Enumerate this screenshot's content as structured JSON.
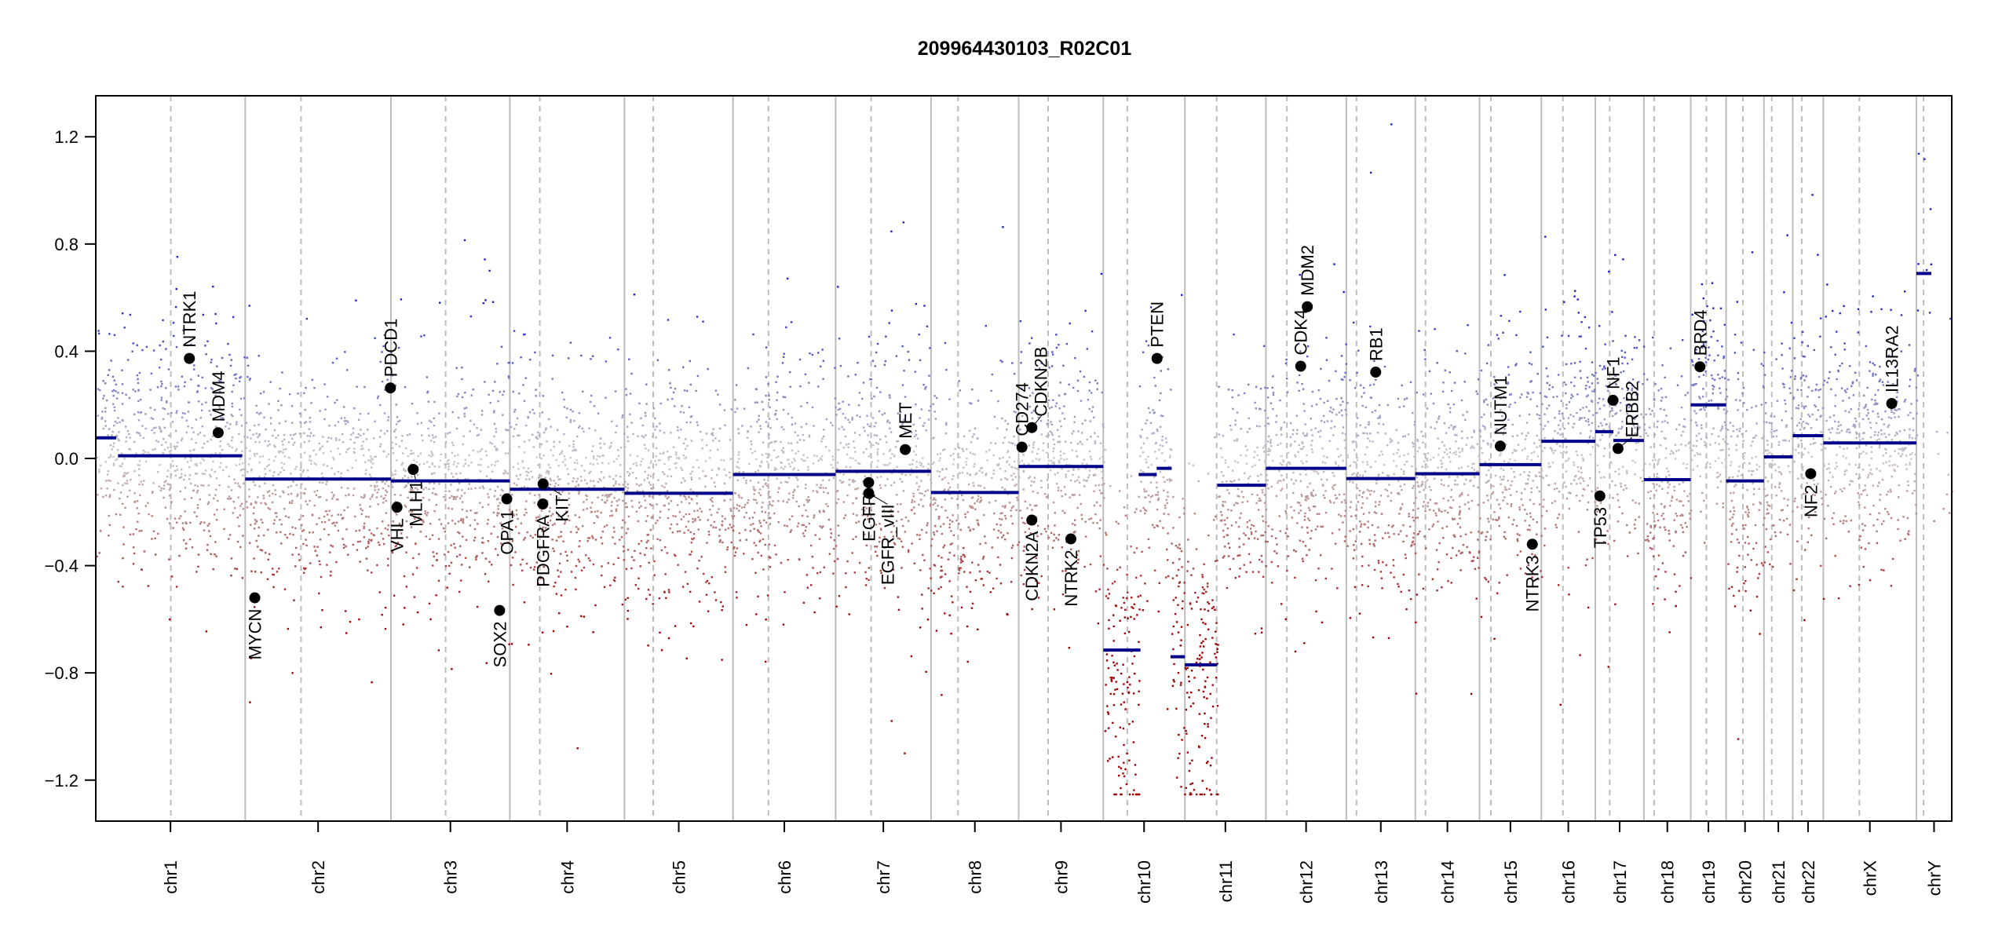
{
  "chart_data": {
    "type": "scatter",
    "title": "209964430103_R02C01",
    "xlabel": "",
    "ylabel": "",
    "ylim": [
      -1.353,
      1.353
    ],
    "yticks": [
      -1.2,
      -0.8,
      -0.4,
      0.0,
      0.4,
      0.8,
      1.2
    ],
    "ytick_labels": [
      "−1.2",
      "−0.8",
      "−0.4",
      "0.0",
      "0.4",
      "0.8",
      "1.2"
    ],
    "probe_clip": 1.25,
    "colors": {
      "gain": "#00008b",
      "loss": "#8b0000",
      "neutral": "#c8c8c8",
      "segment": "#00008b",
      "gene": "#000000",
      "chrom_line": "#bdbdbd",
      "centromere_line": "#bdbdbd"
    },
    "chromosomes": [
      {
        "name": "chr1",
        "length": 249,
        "centromere": 125
      },
      {
        "name": "chr2",
        "length": 243,
        "centromere": 93
      },
      {
        "name": "chr3",
        "length": 198,
        "centromere": 91
      },
      {
        "name": "chr4",
        "length": 191,
        "centromere": 50
      },
      {
        "name": "chr5",
        "length": 181,
        "centromere": 48
      },
      {
        "name": "chr6",
        "length": 171,
        "centromere": 59
      },
      {
        "name": "chr7",
        "length": 159,
        "centromere": 59
      },
      {
        "name": "chr8",
        "length": 146,
        "centromere": 45
      },
      {
        "name": "chr9",
        "length": 141,
        "centromere": 49
      },
      {
        "name": "chr10",
        "length": 136,
        "centromere": 40
      },
      {
        "name": "chr11",
        "length": 135,
        "centromere": 53
      },
      {
        "name": "chr12",
        "length": 134,
        "centromere": 35
      },
      {
        "name": "chr13",
        "length": 115,
        "centromere": 17
      },
      {
        "name": "chr14",
        "length": 107,
        "centromere": 17
      },
      {
        "name": "chr15",
        "length": 103,
        "centromere": 19
      },
      {
        "name": "chr16",
        "length": 90,
        "centromere": 36
      },
      {
        "name": "chr17",
        "length": 81,
        "centromere": 24
      },
      {
        "name": "chr18",
        "length": 78,
        "centromere": 17
      },
      {
        "name": "chr19",
        "length": 59,
        "centromere": 26
      },
      {
        "name": "chr20",
        "length": 63,
        "centromere": 28
      },
      {
        "name": "chr21",
        "length": 48,
        "centromere": 13
      },
      {
        "name": "chr22",
        "length": 51,
        "centromere": 15
      },
      {
        "name": "chrX",
        "length": 155,
        "centromere": 60
      },
      {
        "name": "chrY",
        "length": 59,
        "centromere": 12
      }
    ],
    "segments": [
      {
        "chr": "chr1",
        "start": 0,
        "end": 34,
        "value": 0.077
      },
      {
        "chr": "chr1",
        "start": 37,
        "end": 244,
        "value": 0.01
      },
      {
        "chr": "chr2",
        "start": 0,
        "end": 243,
        "value": -0.077
      },
      {
        "chr": "chr3",
        "start": 0,
        "end": 198,
        "value": -0.084
      },
      {
        "chr": "chr4",
        "start": 0,
        "end": 191,
        "value": -0.115
      },
      {
        "chr": "chr5",
        "start": 0,
        "end": 181,
        "value": -0.13
      },
      {
        "chr": "chr6",
        "start": 0,
        "end": 171,
        "value": -0.06
      },
      {
        "chr": "chr7",
        "start": 0,
        "end": 159,
        "value": -0.048
      },
      {
        "chr": "chr8",
        "start": 0,
        "end": 146,
        "value": -0.127
      },
      {
        "chr": "chr9",
        "start": 0,
        "end": 141,
        "value": -0.03
      },
      {
        "chr": "chr10",
        "start": 0,
        "end": 62,
        "value": -0.715
      },
      {
        "chr": "chr10",
        "start": 59,
        "end": 89,
        "value": -0.06
      },
      {
        "chr": "chr10",
        "start": 89,
        "end": 114,
        "value": -0.037
      },
      {
        "chr": "chr10",
        "start": 112,
        "end": 136,
        "value": -0.74
      },
      {
        "chr": "chr11",
        "start": 0,
        "end": 54,
        "value": -0.77
      },
      {
        "chr": "chr11",
        "start": 54,
        "end": 135,
        "value": -0.1
      },
      {
        "chr": "chr12",
        "start": 0,
        "end": 134,
        "value": -0.037
      },
      {
        "chr": "chr13",
        "start": 0,
        "end": 115,
        "value": -0.075
      },
      {
        "chr": "chr14",
        "start": 0,
        "end": 107,
        "value": -0.057
      },
      {
        "chr": "chr15",
        "start": 0,
        "end": 103,
        "value": -0.023
      },
      {
        "chr": "chr16",
        "start": 0,
        "end": 90,
        "value": 0.064
      },
      {
        "chr": "chr17",
        "start": 0,
        "end": 30,
        "value": 0.1
      },
      {
        "chr": "chr17",
        "start": 30,
        "end": 81,
        "value": 0.067
      },
      {
        "chr": "chr18",
        "start": 0,
        "end": 78,
        "value": -0.079
      },
      {
        "chr": "chr19",
        "start": 0,
        "end": 59,
        "value": 0.2
      },
      {
        "chr": "chr20",
        "start": 0,
        "end": 63,
        "value": -0.084
      },
      {
        "chr": "chr21",
        "start": 0,
        "end": 48,
        "value": 0.006
      },
      {
        "chr": "chr22",
        "start": 0,
        "end": 51,
        "value": 0.085
      },
      {
        "chr": "chrX",
        "start": 0,
        "end": 155,
        "value": 0.058
      },
      {
        "chr": "chrY",
        "start": 0,
        "end": 25,
        "value": 0.69
      }
    ],
    "genes": [
      {
        "name": "NTRK1",
        "chr": "chr1",
        "pos": 156,
        "value": 0.373,
        "label_side": "above"
      },
      {
        "name": "MDM4",
        "chr": "chr1",
        "pos": 204,
        "value": 0.096,
        "label_side": "above"
      },
      {
        "name": "MYCN",
        "chr": "chr2",
        "pos": 16,
        "value": -0.52,
        "label_side": "below"
      },
      {
        "name": "PDCD1",
        "chr": "chr2",
        "pos": 242,
        "value": 0.263,
        "label_side": "above"
      },
      {
        "name": "VHL",
        "chr": "chr3",
        "pos": 10,
        "value": -0.182,
        "label_side": "below"
      },
      {
        "name": "MLH1",
        "chr": "chr3",
        "pos": 37,
        "value": -0.041,
        "label_side": "below"
      },
      {
        "name": "SOX2",
        "chr": "chr3",
        "pos": 181,
        "value": -0.567,
        "label_side": "below"
      },
      {
        "name": "OPA1",
        "chr": "chr3",
        "pos": 193,
        "value": -0.151,
        "label_side": "below"
      },
      {
        "name": "PDGFRA",
        "chr": "chr4",
        "pos": 55,
        "value": -0.17,
        "label_side": "below"
      },
      {
        "name": "KIT",
        "chr": "chr4",
        "pos": 55.5,
        "value": -0.095,
        "label_side": "below"
      },
      {
        "name": "EGFR",
        "chr": "chr7",
        "pos": 55,
        "value": -0.09,
        "label_side": "below"
      },
      {
        "name": "EGFR_vIII",
        "chr": "chr7",
        "pos": 55.1,
        "value": -0.13,
        "label_side": "below"
      },
      {
        "name": "MET",
        "chr": "chr7",
        "pos": 116,
        "value": 0.033,
        "label_side": "above"
      },
      {
        "name": "CD274",
        "chr": "chr9",
        "pos": 5.5,
        "value": 0.042,
        "label_side": "above"
      },
      {
        "name": "CDKN2B",
        "chr": "chr9",
        "pos": 22,
        "value": 0.115,
        "label_side": "above"
      },
      {
        "name": "CDKN2A",
        "chr": "chr9",
        "pos": 21.9,
        "value": -0.23,
        "label_side": "below"
      },
      {
        "name": "NTRK2",
        "chr": "chr9",
        "pos": 87,
        "value": -0.3,
        "label_side": "below"
      },
      {
        "name": "PTEN",
        "chr": "chr10",
        "pos": 89.6,
        "value": 0.373,
        "label_side": "above"
      },
      {
        "name": "CDK4",
        "chr": "chr12",
        "pos": 58,
        "value": 0.344,
        "label_side": "above"
      },
      {
        "name": "MDM2",
        "chr": "chr12",
        "pos": 69,
        "value": 0.566,
        "label_side": "above"
      },
      {
        "name": "RB1",
        "chr": "chr13",
        "pos": 49,
        "value": 0.322,
        "label_side": "above"
      },
      {
        "name": "NUTM1",
        "chr": "chr15",
        "pos": 34.6,
        "value": 0.046,
        "label_side": "above"
      },
      {
        "name": "NTRK3",
        "chr": "chr15",
        "pos": 88,
        "value": -0.32,
        "label_side": "below"
      },
      {
        "name": "TP53",
        "chr": "chr17",
        "pos": 7.6,
        "value": -0.14,
        "label_side": "below"
      },
      {
        "name": "NF1",
        "chr": "chr17",
        "pos": 29.5,
        "value": 0.217,
        "label_side": "above"
      },
      {
        "name": "ERBB2",
        "chr": "chr17",
        "pos": 37.8,
        "value": 0.037,
        "label_side": "above"
      },
      {
        "name": "BRD4",
        "chr": "chr19",
        "pos": 15.4,
        "value": 0.342,
        "label_side": "above"
      },
      {
        "name": "NF2",
        "chr": "chr22",
        "pos": 30,
        "value": -0.057,
        "label_side": "below"
      },
      {
        "name": "IL13RA2",
        "chr": "chrX",
        "pos": 114,
        "value": 0.205,
        "label_side": "above"
      }
    ],
    "probe_density_per_mb": 2.4,
    "probe_noise_sd": 0.2
  }
}
